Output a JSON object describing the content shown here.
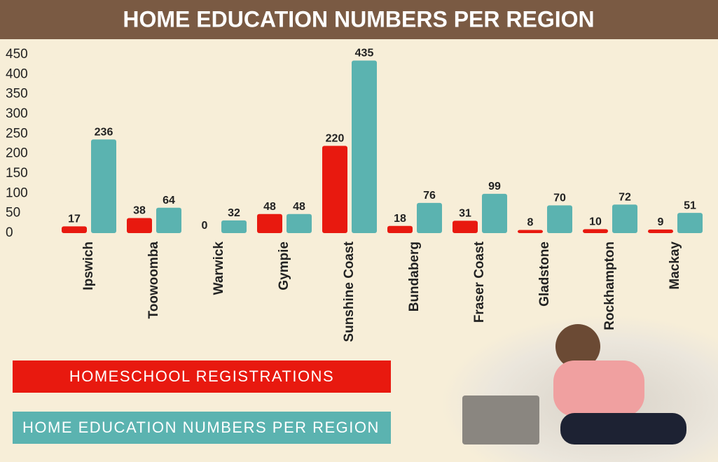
{
  "chart_data": {
    "type": "bar",
    "title": "HOME EDUCATION NUMBERS PER REGION",
    "categories": [
      "Ipswich",
      "Toowoomba",
      "Warwick",
      "Gympie",
      "Sunshine Coast",
      "Bundaberg",
      "Fraser Coast",
      "Gladstone",
      "Rockhampton",
      "Mackay"
    ],
    "series": [
      {
        "name": "HOMESCHOOL REGISTRATIONS",
        "color": "#e8190f",
        "values": [
          17,
          38,
          0,
          48,
          220,
          18,
          31,
          8,
          10,
          9
        ]
      },
      {
        "name": "HOME EDUCATION NUMBERS PER REGION",
        "color": "#5bb3b0",
        "values": [
          236,
          64,
          32,
          48,
          435,
          76,
          99,
          70,
          72,
          51
        ]
      }
    ],
    "ylim": [
      0,
      450
    ],
    "yticks": [
      0,
      50,
      100,
      150,
      200,
      250,
      300,
      350,
      400,
      450
    ]
  }
}
